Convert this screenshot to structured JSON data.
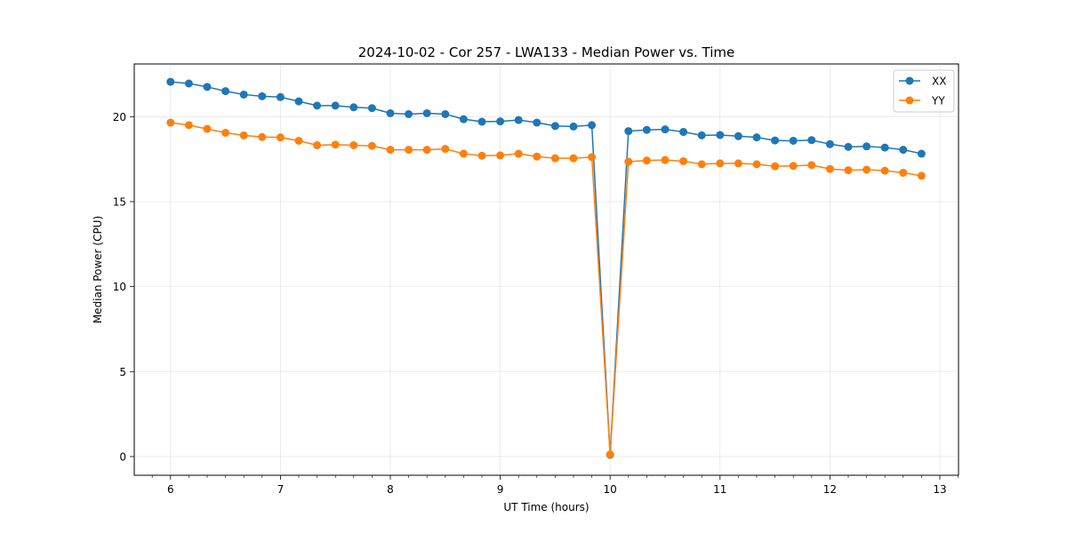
{
  "chart_data": {
    "type": "line",
    "title": "2024-10-02 - Cor 257 - LWA133 - Median Power vs. Time",
    "xlabel": "UT Time (hours)",
    "ylabel": "Median Power (CPU)",
    "xlim": [
      5.67,
      13.17
    ],
    "ylim": [
      -1.1,
      23.1
    ],
    "xticks": [
      6,
      7,
      8,
      9,
      10,
      11,
      12,
      13
    ],
    "xtick_labels": [
      "6",
      "7",
      "8",
      "9",
      "10",
      "11",
      "12",
      "13"
    ],
    "yticks": [
      0,
      5,
      10,
      15,
      20
    ],
    "ytick_labels": [
      "0",
      "5",
      "10",
      "15",
      "20"
    ],
    "grid": true,
    "legend_position": "top-right",
    "x": [
      6.0,
      6.1667,
      6.3333,
      6.5,
      6.6667,
      6.8333,
      7.0,
      7.1667,
      7.3333,
      7.5,
      7.6667,
      7.8333,
      8.0,
      8.1667,
      8.3333,
      8.5,
      8.6667,
      8.8333,
      9.0,
      9.1667,
      9.3333,
      9.5,
      9.6667,
      9.8333,
      10.0,
      10.1667,
      10.3333,
      10.5,
      10.6667,
      10.8333,
      11.0,
      11.1667,
      11.3333,
      11.5,
      11.6667,
      11.8333,
      12.0,
      12.1667,
      12.3333,
      12.5,
      12.6667,
      12.8333
    ],
    "series": [
      {
        "name": "XX",
        "color": "#1f77b4",
        "values": [
          22.05,
          21.95,
          21.75,
          21.5,
          21.3,
          21.2,
          21.15,
          20.9,
          20.65,
          20.65,
          20.55,
          20.5,
          20.2,
          20.15,
          20.2,
          20.15,
          19.85,
          19.7,
          19.72,
          19.8,
          19.65,
          19.45,
          19.42,
          19.5,
          0.1,
          19.15,
          19.22,
          19.25,
          19.1,
          18.9,
          18.92,
          18.85,
          18.78,
          18.6,
          18.58,
          18.62,
          18.38,
          18.22,
          18.25,
          18.18,
          18.05,
          17.82
        ]
      },
      {
        "name": "YY",
        "color": "#ff7f0e",
        "values": [
          19.65,
          19.5,
          19.28,
          19.05,
          18.9,
          18.8,
          18.78,
          18.58,
          18.32,
          18.35,
          18.32,
          18.28,
          18.05,
          18.05,
          18.05,
          18.1,
          17.82,
          17.7,
          17.72,
          17.82,
          17.65,
          17.55,
          17.55,
          17.62,
          0.12,
          17.35,
          17.42,
          17.45,
          17.38,
          17.2,
          17.25,
          17.25,
          17.2,
          17.08,
          17.1,
          17.15,
          16.92,
          16.85,
          16.88,
          16.82,
          16.7,
          16.52
        ]
      }
    ]
  }
}
